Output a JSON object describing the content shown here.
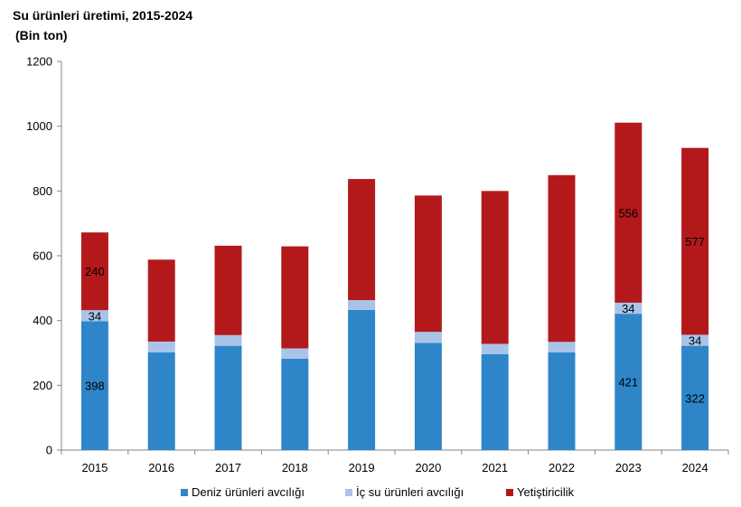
{
  "chart_data": {
    "type": "bar",
    "stacked": true,
    "title": "Su ürünleri üretimi, 2015-2024",
    "subtitle": "(Bin ton)",
    "xlabel": "",
    "ylabel": "",
    "ylim": [
      0,
      1200
    ],
    "yticks": [
      "0",
      "200",
      "400",
      "600",
      "800",
      "1000",
      "1200"
    ],
    "categories": [
      "2015",
      "2016",
      "2017",
      "2018",
      "2019",
      "2020",
      "2021",
      "2022",
      "2023",
      "2024"
    ],
    "series": [
      {
        "name": "Deniz ürünleri avcılığı",
        "color": "#2E86C9",
        "values": [
          398,
          302,
          322,
          282,
          433,
          331,
          296,
          302,
          421,
          322
        ],
        "labels": [
          "398",
          "",
          "",
          "",
          "",
          "",
          "",
          "",
          "421",
          "322"
        ]
      },
      {
        "name": "İç su ürünleri avcılığı",
        "color": "#A9C4E8",
        "values": [
          34,
          33,
          33,
          32,
          30,
          34,
          32,
          32,
          34,
          34
        ],
        "labels": [
          "34",
          "",
          "",
          "",
          "",
          "",
          "",
          "",
          "34",
          "34"
        ]
      },
      {
        "name": "Yetiştiricilik",
        "color": "#B3191B",
        "values": [
          240,
          253,
          276,
          315,
          374,
          421,
          472,
          515,
          556,
          577
        ],
        "labels": [
          "240",
          "",
          "",
          "",
          "",
          "",
          "",
          "",
          "556",
          "577"
        ]
      }
    ],
    "legend_position": "bottom"
  }
}
